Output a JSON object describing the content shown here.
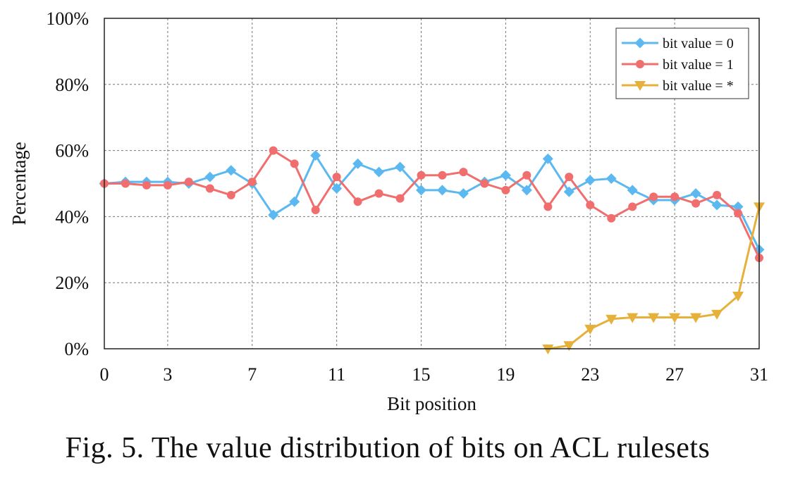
{
  "caption": "Fig. 5. The value distribution of bits on ACL rulesets",
  "chart_data": {
    "type": "line",
    "title": "",
    "xlabel": "Bit position",
    "ylabel": "Percentage",
    "xlim": [
      0,
      31
    ],
    "ylim": [
      0,
      100
    ],
    "x_ticks": [
      0,
      3,
      7,
      11,
      15,
      19,
      23,
      27,
      31
    ],
    "x_tick_labels": [
      "0",
      "3",
      "7",
      "11",
      "15",
      "19",
      "23",
      "27",
      "31"
    ],
    "y_ticks": [
      0,
      20,
      40,
      60,
      80,
      100
    ],
    "y_tick_labels": [
      "0%",
      "20%",
      "40%",
      "60%",
      "80%",
      "100%"
    ],
    "grid": true,
    "legend_position": "top-right",
    "series": [
      {
        "name": "bit value = 0",
        "color": "#5bb8f0",
        "marker": "diamond",
        "x": [
          0,
          1,
          2,
          3,
          4,
          5,
          6,
          7,
          8,
          9,
          10,
          11,
          12,
          13,
          14,
          15,
          16,
          17,
          18,
          19,
          20,
          21,
          22,
          23,
          24,
          25,
          26,
          27,
          28,
          29,
          30,
          31
        ],
        "values": [
          50,
          50.5,
          50.5,
          50.5,
          50,
          52,
          54,
          50,
          40.5,
          44.5,
          58.5,
          48.5,
          56,
          53.5,
          55,
          48,
          48,
          47,
          50.5,
          52.5,
          48,
          57.5,
          47.5,
          51,
          51.5,
          48,
          45,
          45,
          47,
          43.5,
          43,
          30
        ]
      },
      {
        "name": "bit value = 1",
        "color": "#f06e6e",
        "marker": "circle",
        "x": [
          0,
          1,
          2,
          3,
          4,
          5,
          6,
          7,
          8,
          9,
          10,
          11,
          12,
          13,
          14,
          15,
          16,
          17,
          18,
          19,
          20,
          21,
          22,
          23,
          24,
          25,
          26,
          27,
          28,
          29,
          30,
          31
        ],
        "values": [
          50,
          50,
          49.5,
          49.5,
          50.5,
          48.5,
          46.5,
          50.5,
          60,
          56,
          42,
          52,
          44.5,
          47,
          45.5,
          52.5,
          52.5,
          53.5,
          50,
          48,
          52.5,
          43,
          52,
          43.5,
          39.5,
          43,
          46,
          46,
          44,
          46.5,
          41,
          27.5
        ]
      },
      {
        "name": "bit value = *",
        "color": "#e5b13a",
        "marker": "triangle-down",
        "x": [
          21,
          22,
          23,
          24,
          25,
          26,
          27,
          28,
          29,
          30,
          31
        ],
        "values": [
          0,
          1,
          6,
          9,
          9.5,
          9.5,
          9.5,
          9.5,
          10.5,
          16,
          43
        ]
      }
    ]
  }
}
